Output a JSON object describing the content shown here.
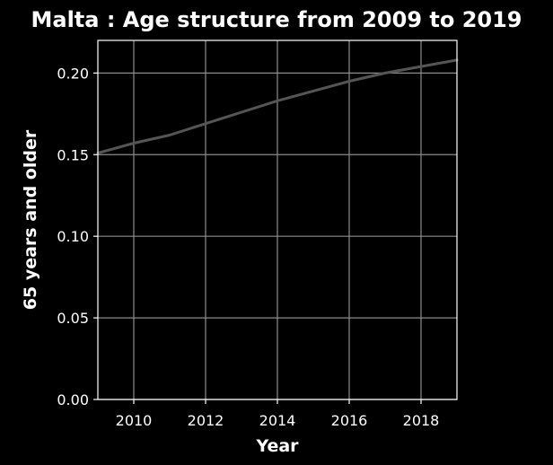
{
  "chart_data": {
    "type": "line",
    "title": "Malta : Age structure from 2009 to 2019",
    "xlabel": "Year",
    "ylabel": "65 years and older",
    "xlim": [
      2009,
      2019
    ],
    "ylim": [
      0,
      0.22
    ],
    "xticks": [
      2010,
      2012,
      2014,
      2016,
      2018
    ],
    "xtick_labels": [
      "2010",
      "2012",
      "2014",
      "2016",
      "2018"
    ],
    "yticks": [
      0,
      0.05,
      0.1,
      0.15,
      0.2
    ],
    "ytick_labels": [
      "0.00",
      "0.05",
      "0.10",
      "0.15",
      "0.20"
    ],
    "grid": true,
    "series": [
      {
        "color": "#555555",
        "x": [
          2009,
          2010,
          2011,
          2012,
          2013,
          2014,
          2015,
          2016,
          2017,
          2018,
          2019
        ],
        "y": [
          0.151,
          0.157,
          0.162,
          0.169,
          0.176,
          0.183,
          0.189,
          0.195,
          0.2,
          0.204,
          0.208
        ]
      }
    ]
  }
}
